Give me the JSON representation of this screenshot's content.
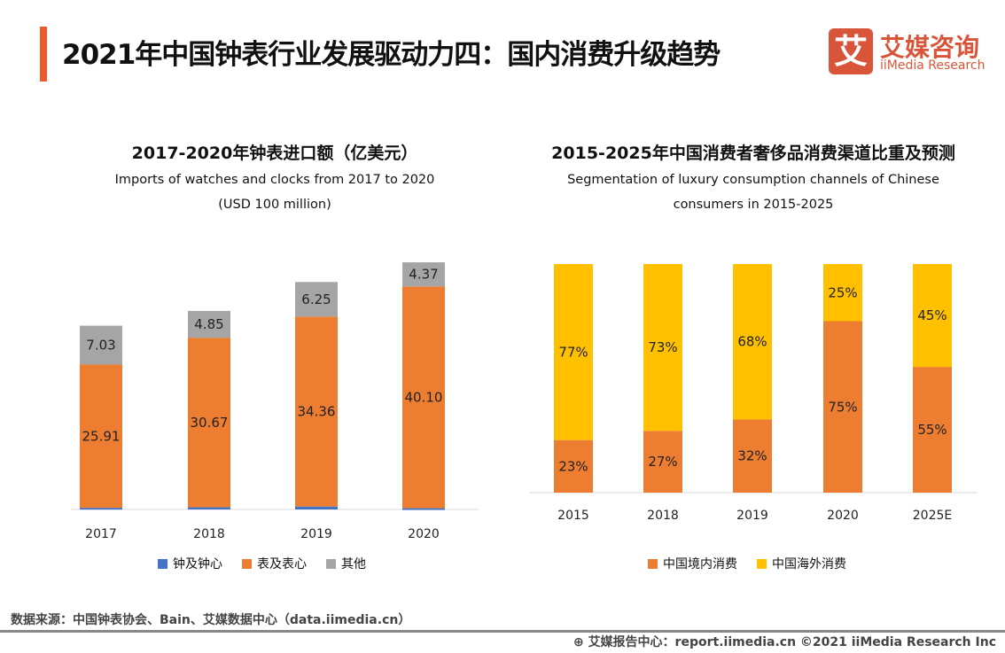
{
  "header": {
    "title": "2021年中国钟表行业发展驱动力四：国内消费升级趋势",
    "logo_mark": "艾",
    "logo_cn": "艾媒咨询",
    "logo_en": "iiMedia Research"
  },
  "chart_data": [
    {
      "type": "bar",
      "stacked": true,
      "title": "2017-2020年钟表进口额（亿美元）",
      "subtitle": "Imports of watches and clocks from 2017 to 2020",
      "subtitle2": "(USD 100 million)",
      "categories": [
        "2017",
        "2018",
        "2019",
        "2020"
      ],
      "series": [
        {
          "name": "钟及钟心",
          "color": "#4472c4",
          "values": [
            0.3,
            0.39,
            0.53,
            0.23
          ],
          "labels": [
            "0.3",
            "0.39",
            "0.53",
            "0.23"
          ]
        },
        {
          "name": "表及表心",
          "color": "#ed7d31",
          "values": [
            25.91,
            30.67,
            34.36,
            40.1
          ],
          "labels": [
            "25.91",
            "30.67",
            "34.36",
            "40.10"
          ]
        },
        {
          "name": "其他",
          "color": "#a5a5a5",
          "values": [
            7.03,
            4.85,
            6.25,
            4.37
          ],
          "labels": [
            "7.03",
            "4.85",
            "6.25",
            "4.37"
          ]
        }
      ],
      "legend": "bottom"
    },
    {
      "type": "bar",
      "stacked": true,
      "percent": true,
      "title": "2015-2025年中国消费者奢侈品消费渠道比重及预测",
      "subtitle": "Segmentation of luxury consumption channels of Chinese",
      "subtitle2": "consumers in 2015-2025",
      "categories": [
        "2015",
        "2018",
        "2019",
        "2020",
        "2025E"
      ],
      "series": [
        {
          "name": "中国境内消费",
          "color": "#ed7d31",
          "values": [
            23,
            27,
            32,
            75,
            55
          ],
          "labels": [
            "23%",
            "27%",
            "32%",
            "75%",
            "55%"
          ]
        },
        {
          "name": "中国海外消费",
          "color": "#ffc000",
          "values": [
            77,
            73,
            68,
            25,
            45
          ],
          "labels": [
            "77%",
            "73%",
            "68%",
            "25%",
            "45%"
          ]
        }
      ],
      "legend": "bottom"
    }
  ],
  "footer": {
    "source": "数据来源：中国钟表协会、Bain、艾媒数据中心（data.iimedia.cn）",
    "credit": "艾媒报告中心：report.iimedia.cn   ©2021  iiMedia Research  Inc"
  }
}
